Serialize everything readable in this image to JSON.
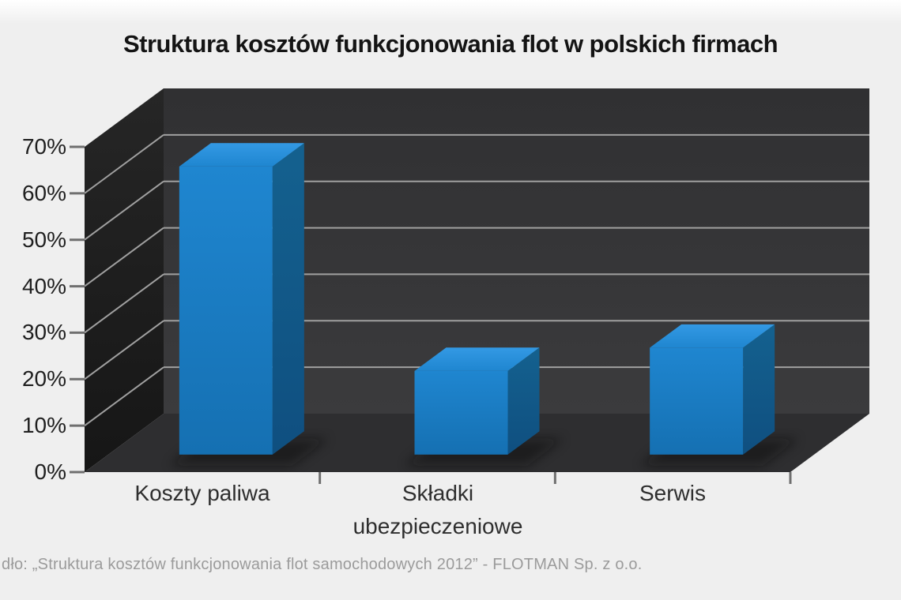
{
  "page": {
    "title": "Struktura kosztów funkcjonowania flot w polskich firmach",
    "source_note": "dło: „Struktura kosztów funkcjonowania flot samochodowych 2012” -  FLOTMAN Sp. z o.o."
  },
  "chart_data": {
    "type": "bar",
    "style": "3d-column",
    "title": "Struktura kosztów funkcjonowania flot w polskich firmach",
    "categories": [
      "Koszty paliwa",
      "Składki ubezpieczeniowe",
      "Serwis"
    ],
    "values": [
      62,
      18,
      23
    ],
    "unit": "%",
    "ylim": [
      0,
      70
    ],
    "ytick_step": 10,
    "ytick_labels": [
      "0%",
      "10%",
      "20%",
      "30%",
      "40%",
      "50%",
      "60%",
      "70%"
    ],
    "legend": "none",
    "grid": true,
    "source": "dło: „Struktura kosztów funkcjonowania flot samochodowych 2012” -  FLOTMAN Sp. z o.o.",
    "colors": {
      "bar_front_top": "#1f86d0",
      "bar_front_bottom": "#1570b2",
      "bar_top_back": "#3399e4",
      "bar_side": "#14618f",
      "back_wall_top": "#303032",
      "back_wall_bottom": "#3b3b3d",
      "left_wall_dark": "#161616",
      "left_wall_light": "#262626",
      "floor": "#2e2e30",
      "gridline": "#a0a0a0",
      "tick": "#6f6f6f",
      "background": "#efefef"
    }
  }
}
